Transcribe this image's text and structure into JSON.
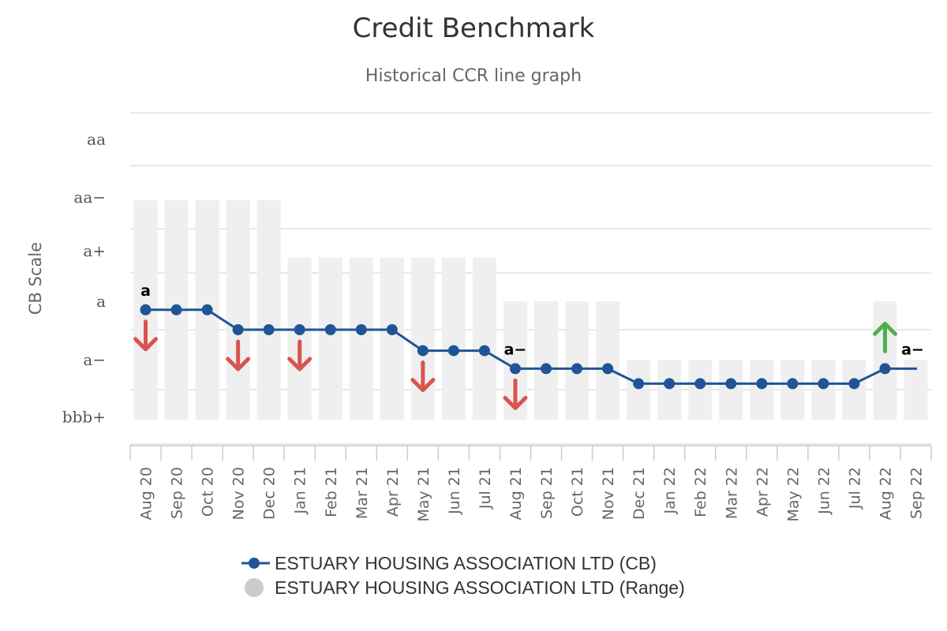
{
  "chart_data": {
    "type": "line",
    "title": "Credit Benchmark",
    "subtitle": "Historical CCR line graph",
    "ylabel": "CB Scale",
    "y_scale": [
      "bbb+",
      "a−",
      "a",
      "a+",
      "aa−",
      "aa"
    ],
    "categories": [
      "Aug 20",
      "Sep 20",
      "Oct 20",
      "Nov 20",
      "Dec 20",
      "Jan 21",
      "Feb 21",
      "Mar 21",
      "Apr 21",
      "May 21",
      "Jun 21",
      "Jul 21",
      "Aug 21",
      "Sep 21",
      "Oct 21",
      "Nov 21",
      "Dec 21",
      "Jan 22",
      "Feb 22",
      "Mar 22",
      "Apr 22",
      "May 22",
      "Jun 22",
      "Jul 22",
      "Aug 22",
      "Sep 22"
    ],
    "series": [
      {
        "name": "ESTUARY HOUSING ASSOCIATION LTD (CB)",
        "color": "#1f5596",
        "values": [
          2.35,
          2.35,
          2.35,
          2.0,
          2.0,
          2.0,
          2.0,
          2.0,
          2.0,
          1.65,
          1.65,
          1.65,
          1.35,
          1.35,
          1.35,
          1.35,
          1.1,
          1.1,
          1.1,
          1.1,
          1.1,
          1.1,
          1.1,
          1.1,
          1.35,
          1.35
        ]
      },
      {
        "name": "ESTUARY HOUSING ASSOCIATION LTD (Range)",
        "color": "#cccccc",
        "type": "range",
        "ranges": [
          [
            0.45,
            4.45
          ],
          [
            0.45,
            4.45
          ],
          [
            0.45,
            4.45
          ],
          [
            0.45,
            4.45
          ],
          [
            0.45,
            4.45
          ],
          [
            0.45,
            3.35
          ],
          [
            0.45,
            3.35
          ],
          [
            0.45,
            3.35
          ],
          [
            0.45,
            3.35
          ],
          [
            0.45,
            3.35
          ],
          [
            0.45,
            3.35
          ],
          [
            0.45,
            3.35
          ],
          [
            0.45,
            2.5
          ],
          [
            0.45,
            2.5
          ],
          [
            0.45,
            2.5
          ],
          [
            0.45,
            2.5
          ],
          [
            0.45,
            1.5
          ],
          [
            0.45,
            1.5
          ],
          [
            0.45,
            1.5
          ],
          [
            0.45,
            1.5
          ],
          [
            0.45,
            1.5
          ],
          [
            0.45,
            1.5
          ],
          [
            0.45,
            1.5
          ],
          [
            0.45,
            1.5
          ],
          [
            0.45,
            2.5
          ],
          [
            0.45,
            1.5
          ]
        ]
      }
    ],
    "point_labels": [
      {
        "index": 0,
        "text": "a"
      },
      {
        "index": 12,
        "text": "a−"
      },
      {
        "index": 25,
        "text": "a−"
      }
    ],
    "change_arrows": [
      {
        "index": 0,
        "direction": "down",
        "color": "#d9534f"
      },
      {
        "index": 3,
        "direction": "down",
        "color": "#d9534f"
      },
      {
        "index": 5,
        "direction": "down",
        "color": "#d9534f"
      },
      {
        "index": 9,
        "direction": "down",
        "color": "#d9534f"
      },
      {
        "index": 12,
        "direction": "down",
        "color": "#d9534f"
      },
      {
        "index": 24,
        "direction": "up",
        "color": "#4caf50"
      }
    ],
    "legend_position": "bottom-center",
    "grid": true
  }
}
